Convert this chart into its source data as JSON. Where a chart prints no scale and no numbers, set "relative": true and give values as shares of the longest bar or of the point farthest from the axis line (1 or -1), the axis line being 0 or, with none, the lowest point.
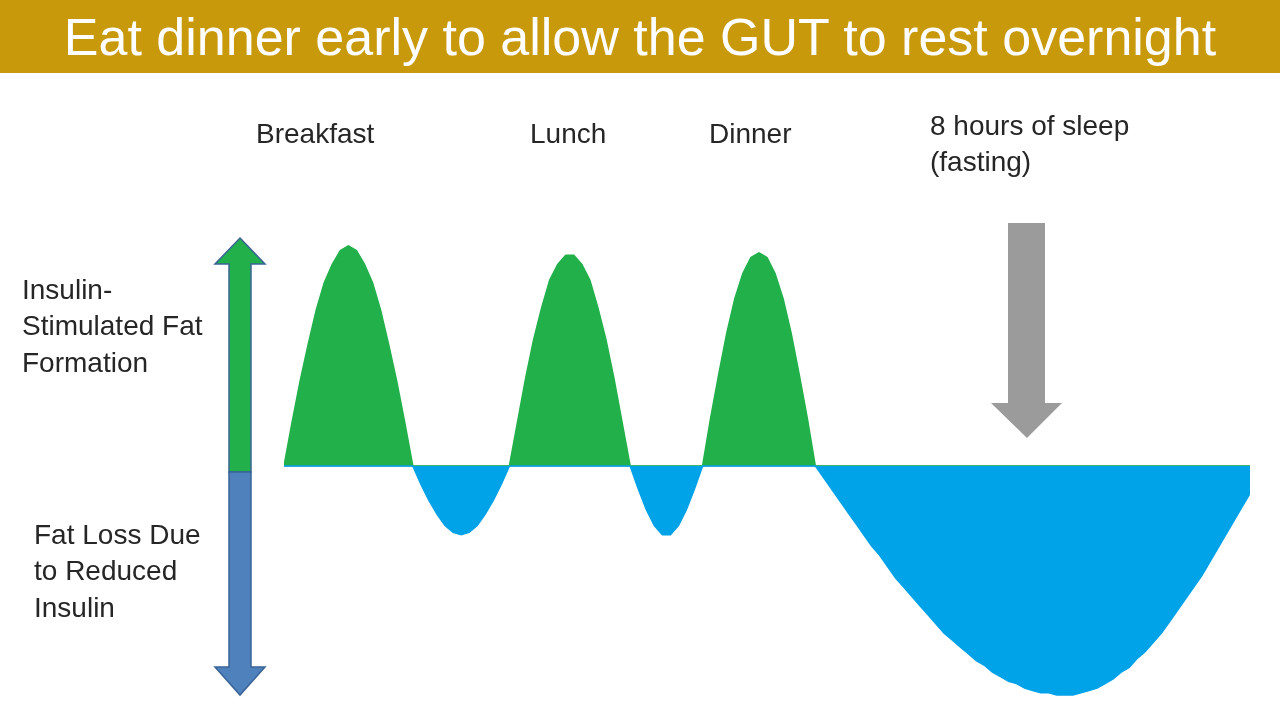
{
  "chart_data": {
    "type": "area",
    "relative": true,
    "title": "Eat dinner early to allow the GUT to rest overnight",
    "annotations": [
      "Breakfast",
      "Lunch",
      "Dinner",
      "8 hours of sleep\n(fasting)",
      "Insulin-\nStimulated Fat\nFormation",
      "Fat Loss Due\nto Reduced\nInsulin"
    ],
    "categories": [
      null,
      null,
      null,
      null,
      null,
      null,
      null,
      null,
      null,
      null,
      null,
      null,
      null,
      null,
      null,
      null,
      null,
      null,
      null,
      null,
      null,
      null,
      null,
      null,
      null,
      null,
      null,
      null,
      null,
      null,
      null,
      null,
      null,
      null,
      null,
      null,
      null,
      null,
      null,
      null,
      null,
      null,
      null,
      null,
      null,
      null,
      null,
      null,
      null,
      null,
      null,
      null,
      null,
      null,
      null,
      null,
      null,
      null,
      null,
      null,
      null,
      null,
      null,
      null,
      null,
      null,
      null,
      null,
      null,
      null,
      null,
      null,
      null,
      null,
      null,
      null,
      null,
      null,
      null,
      null,
      null,
      null,
      null,
      null,
      null,
      null,
      null,
      null,
      null,
      null,
      null,
      null,
      null,
      null,
      null,
      null,
      null,
      null,
      null,
      null,
      null,
      null,
      null,
      null,
      null,
      null,
      null,
      null,
      null,
      null,
      null,
      null,
      null,
      null,
      null,
      null,
      null,
      null,
      null,
      null,
      null
    ],
    "ref_lines": [
      {
        "axis": "y",
        "value": 0,
        "color": "#9dbde0"
      }
    ],
    "series": [
      {
        "color": "#22b04b",
        "values": [
          0,
          0.19,
          0.37,
          0.53,
          0.68,
          0.8,
          0.88,
          0.94,
          0.96,
          0.94,
          0.88,
          0.8,
          0.68,
          0.53,
          0.37,
          0.19,
          0,
          0,
          0,
          0,
          0,
          0,
          0,
          0,
          0,
          0,
          0,
          0,
          0,
          0.19,
          0.38,
          0.55,
          0.69,
          0.81,
          0.88,
          0.92,
          0.92,
          0.88,
          0.81,
          0.69,
          0.55,
          0.38,
          0.19,
          0,
          0,
          0,
          0,
          0,
          0,
          0,
          0,
          0,
          0,
          0.21,
          0.4,
          0.58,
          0.73,
          0.84,
          0.91,
          0.93,
          0.91,
          0.84,
          0.73,
          0.58,
          0.4,
          0.21,
          0,
          0,
          0,
          0,
          0,
          0,
          0,
          0,
          0,
          0,
          0,
          0,
          0,
          0,
          0,
          0,
          0,
          0,
          0,
          0,
          0,
          0,
          0,
          0,
          0,
          0,
          0,
          0,
          0,
          0,
          0,
          0,
          0,
          0,
          0,
          0,
          0,
          0,
          0,
          0,
          0,
          0,
          0,
          0,
          0,
          0,
          0,
          0,
          0,
          0,
          0,
          0,
          0,
          0,
          0
        ]
      },
      {
        "color": "#00a2e8",
        "values": [
          0,
          0,
          0,
          0,
          0,
          0,
          0,
          0,
          0,
          0,
          0,
          0,
          0,
          0,
          0,
          0,
          0,
          -0.08,
          -0.15,
          -0.21,
          -0.26,
          -0.29,
          -0.3,
          -0.29,
          -0.26,
          -0.21,
          -0.15,
          -0.08,
          0,
          0,
          0,
          0,
          0,
          0,
          0,
          0,
          0,
          0,
          0,
          0,
          0,
          0,
          0,
          0,
          -0.1,
          -0.19,
          -0.26,
          -0.3,
          -0.3,
          -0.26,
          -0.19,
          -0.1,
          0,
          0,
          0,
          0,
          0,
          0,
          0,
          0,
          0,
          0,
          0,
          0,
          0,
          0,
          0,
          -0.05,
          -0.1,
          -0.15,
          -0.2,
          -0.25,
          -0.3,
          -0.35,
          -0.39,
          -0.44,
          -0.49,
          -0.53,
          -0.57,
          -0.61,
          -0.65,
          -0.69,
          -0.73,
          -0.76,
          -0.79,
          -0.82,
          -0.85,
          -0.87,
          -0.9,
          -0.92,
          -0.94,
          -0.95,
          -0.97,
          -0.98,
          -0.99,
          -0.99,
          -1,
          -1,
          -1,
          -0.99,
          -0.98,
          -0.97,
          -0.95,
          -0.93,
          -0.9,
          -0.88,
          -0.84,
          -0.81,
          -0.77,
          -0.73,
          -0.68,
          -0.63,
          -0.58,
          -0.53,
          -0.48,
          -0.42,
          -0.36,
          -0.3,
          -0.24,
          -0.18,
          -0.12
        ]
      }
    ]
  }
}
